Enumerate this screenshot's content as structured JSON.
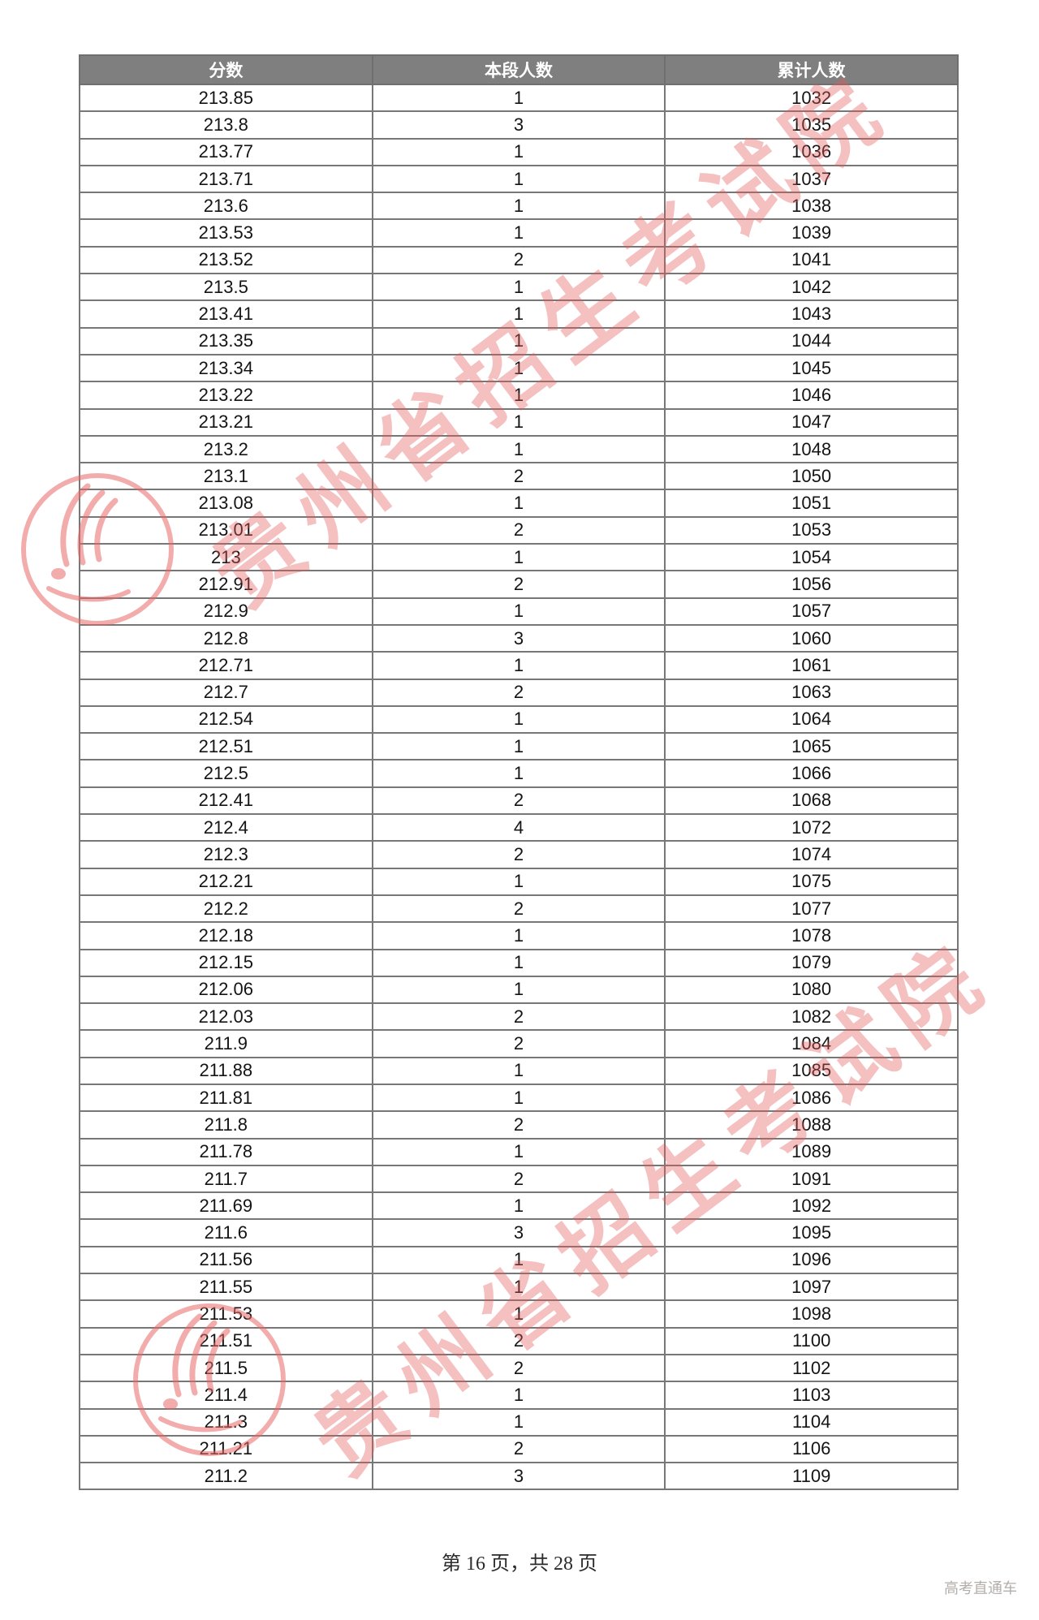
{
  "watermark": {
    "text": "贵州省招生考试院"
  },
  "page": {
    "footer": "第 16 页，共 28 页",
    "brand": "高考直通车"
  },
  "table": {
    "columns": [
      "分数",
      "本段人数",
      "累计人数"
    ],
    "rows": [
      [
        "213.85",
        "1",
        "1032"
      ],
      [
        "213.8",
        "3",
        "1035"
      ],
      [
        "213.77",
        "1",
        "1036"
      ],
      [
        "213.71",
        "1",
        "1037"
      ],
      [
        "213.6",
        "1",
        "1038"
      ],
      [
        "213.53",
        "1",
        "1039"
      ],
      [
        "213.52",
        "2",
        "1041"
      ],
      [
        "213.5",
        "1",
        "1042"
      ],
      [
        "213.41",
        "1",
        "1043"
      ],
      [
        "213.35",
        "1",
        "1044"
      ],
      [
        "213.34",
        "1",
        "1045"
      ],
      [
        "213.22",
        "1",
        "1046"
      ],
      [
        "213.21",
        "1",
        "1047"
      ],
      [
        "213.2",
        "1",
        "1048"
      ],
      [
        "213.1",
        "2",
        "1050"
      ],
      [
        "213.08",
        "1",
        "1051"
      ],
      [
        "213.01",
        "2",
        "1053"
      ],
      [
        "213",
        "1",
        "1054"
      ],
      [
        "212.91",
        "2",
        "1056"
      ],
      [
        "212.9",
        "1",
        "1057"
      ],
      [
        "212.8",
        "3",
        "1060"
      ],
      [
        "212.71",
        "1",
        "1061"
      ],
      [
        "212.7",
        "2",
        "1063"
      ],
      [
        "212.54",
        "1",
        "1064"
      ],
      [
        "212.51",
        "1",
        "1065"
      ],
      [
        "212.5",
        "1",
        "1066"
      ],
      [
        "212.41",
        "2",
        "1068"
      ],
      [
        "212.4",
        "4",
        "1072"
      ],
      [
        "212.3",
        "2",
        "1074"
      ],
      [
        "212.21",
        "1",
        "1075"
      ],
      [
        "212.2",
        "2",
        "1077"
      ],
      [
        "212.18",
        "1",
        "1078"
      ],
      [
        "212.15",
        "1",
        "1079"
      ],
      [
        "212.06",
        "1",
        "1080"
      ],
      [
        "212.03",
        "2",
        "1082"
      ],
      [
        "211.9",
        "2",
        "1084"
      ],
      [
        "211.88",
        "1",
        "1085"
      ],
      [
        "211.81",
        "1",
        "1086"
      ],
      [
        "211.8",
        "2",
        "1088"
      ],
      [
        "211.78",
        "1",
        "1089"
      ],
      [
        "211.7",
        "2",
        "1091"
      ],
      [
        "211.69",
        "1",
        "1092"
      ],
      [
        "211.6",
        "3",
        "1095"
      ],
      [
        "211.56",
        "1",
        "1096"
      ],
      [
        "211.55",
        "1",
        "1097"
      ],
      [
        "211.53",
        "1",
        "1098"
      ],
      [
        "211.51",
        "2",
        "1100"
      ],
      [
        "211.5",
        "2",
        "1102"
      ],
      [
        "211.4",
        "1",
        "1103"
      ],
      [
        "211.3",
        "1",
        "1104"
      ],
      [
        "211.21",
        "2",
        "1106"
      ],
      [
        "211.2",
        "3",
        "1109"
      ]
    ]
  },
  "stamp_color": "#e86868"
}
